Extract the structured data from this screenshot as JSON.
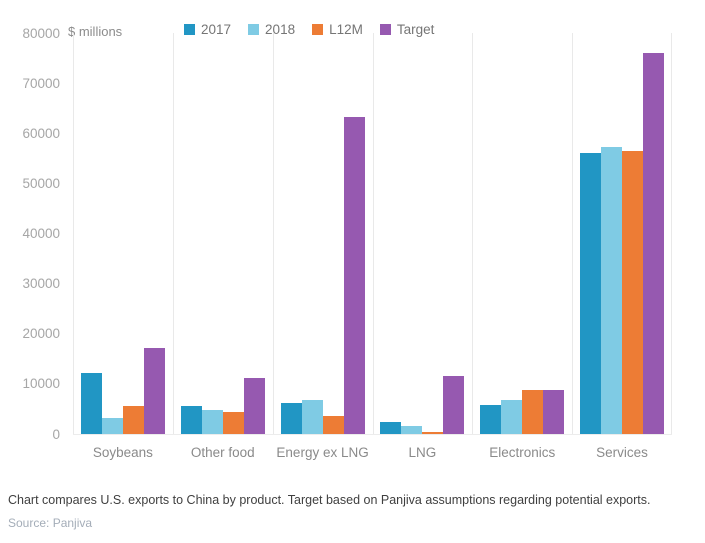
{
  "chart_data": {
    "type": "bar",
    "title": "",
    "unit_label": "$ millions",
    "categories": [
      "Soybeans",
      "Other food",
      "Energy ex LNG",
      "LNG",
      "Electronics",
      "Services"
    ],
    "series": [
      {
        "name": "2017",
        "color": "#2196C4",
        "values": [
          12200,
          5500,
          6100,
          2300,
          5700,
          56000
        ]
      },
      {
        "name": "2018",
        "color": "#7FCBE4",
        "values": [
          3100,
          4700,
          6800,
          1600,
          6800,
          57200
        ]
      },
      {
        "name": "L12M",
        "color": "#ED7C35",
        "values": [
          5500,
          4300,
          3600,
          500,
          8800,
          56500
        ]
      },
      {
        "name": "Target",
        "color": "#9659B0",
        "values": [
          17200,
          11200,
          63200,
          11600,
          8800,
          76000
        ]
      }
    ],
    "ylim": [
      0,
      80000
    ],
    "yticks": [
      0,
      10000,
      20000,
      30000,
      40000,
      50000,
      60000,
      70000,
      80000
    ],
    "legend_position": "top",
    "grid": "vertical-category-separators"
  },
  "footer": {
    "note": "Chart compares U.S. exports to China by product. Target based on Panjiva assumptions regarding potential exports.",
    "source": "Source: Panjiva"
  },
  "colors": {
    "axis_text": "#a6a6a6",
    "category_text": "#8a8a8a",
    "legend_text": "#757575",
    "gridline": "#e9e9e9"
  }
}
